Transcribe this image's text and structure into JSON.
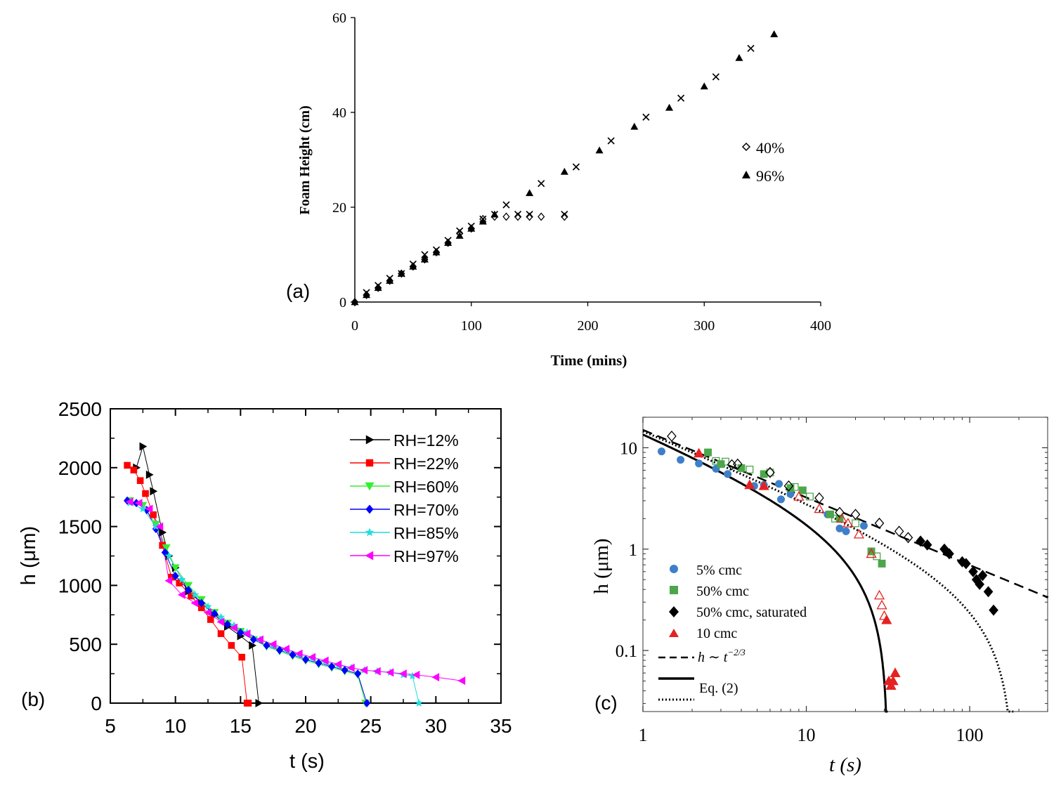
{
  "panels": {
    "a": {
      "label": "(a)"
    },
    "b": {
      "label": "(b)"
    },
    "c": {
      "label": "(c)"
    }
  },
  "chart_data": [
    {
      "id": "a",
      "type": "scatter",
      "xlabel": "Time (mins)",
      "ylabel": "Foam Height (cm)",
      "xlim": [
        0,
        400
      ],
      "ylim": [
        0,
        60
      ],
      "xticks": [
        0,
        100,
        200,
        300,
        400
      ],
      "yticks": [
        0,
        20,
        40,
        60
      ],
      "legend_position": "right",
      "series": [
        {
          "name": "40%",
          "marker": "diamond-open",
          "x": [
            0,
            10,
            20,
            30,
            40,
            50,
            60,
            70,
            80,
            90,
            100,
            110,
            120,
            130,
            140,
            150,
            160,
            180
          ],
          "y": [
            0,
            1.5,
            3,
            4.5,
            6,
            7.5,
            9,
            10.5,
            12.5,
            14.5,
            15.5,
            17.5,
            18,
            18,
            18,
            18,
            18,
            18
          ]
        },
        {
          "name": "96%",
          "marker": "triangle-filled",
          "x": [
            0,
            10,
            20,
            30,
            40,
            50,
            60,
            70,
            80,
            90,
            100,
            110,
            120,
            150,
            180,
            210,
            240,
            270,
            300,
            330,
            360
          ],
          "y": [
            0,
            1.5,
            3,
            4.5,
            6,
            7.5,
            9,
            10.5,
            12.5,
            14,
            15.5,
            17,
            18.5,
            23,
            27.5,
            32,
            37,
            41,
            45.5,
            51.5,
            56.5
          ]
        },
        {
          "marker": "x",
          "x": [
            10,
            20,
            30,
            40,
            50,
            60,
            70,
            80,
            90,
            100,
            110,
            120,
            130,
            140,
            150,
            160,
            180,
            190,
            220,
            250,
            280,
            310,
            340
          ],
          "y": [
            2,
            3.5,
            5,
            6,
            8,
            10,
            11,
            13,
            15,
            16,
            17.5,
            18.5,
            20.5,
            18.5,
            18.5,
            25,
            18.5,
            28.5,
            34,
            39,
            43,
            47.5,
            53.5
          ]
        }
      ]
    },
    {
      "id": "b",
      "type": "line",
      "xlabel": "t (s)",
      "ylabel": "h (μm)",
      "xlim": [
        5,
        35
      ],
      "ylim": [
        0,
        2500
      ],
      "xticks": [
        5,
        10,
        15,
        20,
        25,
        30,
        35
      ],
      "yticks": [
        0,
        500,
        1000,
        1500,
        2000,
        2500
      ],
      "legend_position": "top-right",
      "series": [
        {
          "name": "RH=12%",
          "color": "#000000",
          "marker": "triangle-right",
          "x": [
            7.0,
            7.5,
            8.0,
            8.3,
            9.0,
            9.5,
            10.0,
            11,
            12,
            13,
            14,
            15,
            15.9,
            16.4
          ],
          "y": [
            2000,
            2180,
            1940,
            1800,
            1450,
            1250,
            1150,
            950,
            850,
            750,
            650,
            570,
            490,
            0
          ]
        },
        {
          "name": "RH=22%",
          "color": "#ff0000",
          "marker": "square",
          "x": [
            6.3,
            6.8,
            7.3,
            7.7,
            8.3,
            9.0,
            9.7,
            10.3,
            11.2,
            12.0,
            12.7,
            13.5,
            14.3,
            15.1,
            15.5,
            15.6
          ],
          "y": [
            2020,
            1980,
            1890,
            1780,
            1600,
            1340,
            1070,
            1020,
            910,
            810,
            710,
            590,
            490,
            390,
            0,
            0
          ]
        },
        {
          "name": "RH=60%",
          "color": "#33ee33",
          "marker": "triangle-down",
          "x": [
            6.5,
            7.5,
            8.5,
            9.3,
            10.0,
            11,
            12,
            13,
            14,
            15,
            16,
            17,
            18,
            19,
            20,
            21,
            22,
            23,
            24,
            24.6
          ],
          "y": [
            1720,
            1680,
            1520,
            1320,
            1150,
            1000,
            880,
            770,
            680,
            610,
            540,
            480,
            440,
            400,
            360,
            330,
            300,
            270,
            240,
            0
          ]
        },
        {
          "name": "RH=70%",
          "color": "#0000ff",
          "marker": "diamond",
          "x": [
            6.3,
            7.0,
            7.8,
            8.5,
            9.2,
            10.0,
            11,
            12,
            13,
            14,
            15,
            16,
            17,
            18,
            19,
            20,
            21,
            22,
            23,
            24,
            24.7
          ],
          "y": [
            1720,
            1700,
            1640,
            1480,
            1280,
            1080,
            960,
            850,
            760,
            670,
            600,
            540,
            490,
            450,
            410,
            370,
            340,
            310,
            280,
            250,
            0
          ]
        },
        {
          "name": "RH=85%",
          "color": "#22dddd",
          "marker": "star",
          "x": [
            6.5,
            7.5,
            8.5,
            9.5,
            10.5,
            11.5,
            12.5,
            13.5,
            14.5,
            15.5,
            16.5,
            17.5,
            18.5,
            19.5,
            20.5,
            21.5,
            22.5,
            23.5,
            24.5,
            25.5,
            26.5,
            27.5,
            28.2,
            28.7
          ],
          "y": [
            1700,
            1650,
            1500,
            1250,
            1050,
            920,
            820,
            730,
            660,
            600,
            540,
            490,
            450,
            410,
            380,
            350,
            320,
            300,
            280,
            270,
            260,
            240,
            230,
            0
          ]
        },
        {
          "name": "RH=97%",
          "color": "#ff00ff",
          "marker": "triangle-left",
          "x": [
            6.5,
            7.2,
            8.0,
            8.8,
            9.5,
            10.5,
            11.5,
            12.5,
            13.5,
            14.5,
            15.5,
            16.5,
            17.5,
            18.5,
            19.5,
            20.5,
            21.5,
            22.5,
            23.5,
            24.5,
            25.5,
            26.5,
            27.5,
            28.5,
            30.0,
            32.0
          ],
          "y": [
            1710,
            1700,
            1650,
            1500,
            1040,
            920,
            850,
            770,
            690,
            640,
            590,
            540,
            500,
            460,
            420,
            390,
            360,
            330,
            300,
            280,
            270,
            260,
            250,
            240,
            220,
            190
          ]
        }
      ]
    },
    {
      "id": "c",
      "type": "scatter",
      "xlabel": "t (s)",
      "ylabel": "h (μm)",
      "xscale": "log",
      "yscale": "log",
      "xlim": [
        1,
        300
      ],
      "ylim": [
        0.025,
        20
      ],
      "xticks": [
        1,
        10,
        100
      ],
      "xtick_labels": [
        "1",
        "10",
        "100"
      ],
      "yticks": [
        0.1,
        1,
        10
      ],
      "ytick_labels": [
        "0.1",
        "1",
        "10"
      ],
      "legend_position": "bottom-left",
      "series": [
        {
          "name": "5% cmc",
          "color": "#3d7fc9",
          "marker": "circle",
          "x": [
            1.3,
            1.7,
            2.2,
            2.8,
            3.3,
            4.8,
            5.5,
            6.8,
            7.0,
            8.0,
            13.5,
            16.0,
            17.5,
            22.5
          ],
          "y": [
            9.2,
            7.6,
            7.0,
            6.2,
            5.5,
            4.2,
            4.3,
            4.4,
            3.1,
            3.5,
            2.2,
            1.6,
            1.5,
            1.7
          ]
        },
        {
          "name": "50% cmc",
          "color": "#4da64a",
          "marker": "square",
          "x": [
            2.5,
            2.8,
            3.0,
            3.2,
            4.0,
            4.5,
            5.5,
            6.0,
            8.0,
            8.5,
            9.5,
            10.5,
            14.0,
            15.0,
            16.0,
            20.0,
            25.0,
            27.0,
            29.0
          ],
          "y": [
            9.0,
            7.4,
            6.9,
            7.3,
            6.3,
            6.1,
            5.5,
            5.7,
            4.0,
            4.1,
            3.8,
            3.3,
            2.2,
            2.0,
            2.0,
            1.8,
            0.95,
            0.85,
            0.72
          ]
        },
        {
          "name": "50% cmc, saturated",
          "color": "#000000",
          "marker": "diamond",
          "x": [
            1.5,
            3.5,
            3.8,
            6.0,
            7.8,
            12.0,
            16.0,
            20.0,
            28.0,
            37.0,
            42.0,
            50.0,
            55.0,
            70.0,
            75.0,
            90.0,
            95.0,
            105.0,
            110.0,
            115.0,
            120.0,
            130.0,
            140.0
          ],
          "y": [
            13.0,
            6.8,
            6.9,
            5.7,
            4.2,
            3.2,
            2.3,
            2.2,
            1.8,
            1.5,
            1.3,
            1.2,
            1.1,
            1.0,
            0.9,
            0.75,
            0.72,
            0.6,
            0.5,
            0.45,
            0.55,
            0.38,
            0.25
          ]
        },
        {
          "name": "10 cmc",
          "color": "#e52222",
          "marker": "triangle",
          "x": [
            2.2,
            4.5,
            5.5,
            9.0,
            12.0,
            16.5,
            18.0,
            21.0,
            25.0,
            28.0,
            29.0,
            30.0,
            31.0,
            32.0,
            33.0,
            34.0,
            35.0
          ],
          "y": [
            8.8,
            4.3,
            4.2,
            3.3,
            2.5,
            2.0,
            1.8,
            1.4,
            0.9,
            0.35,
            0.28,
            0.22,
            0.2,
            0.05,
            0.045,
            0.05,
            0.06
          ]
        }
      ],
      "lines": [
        {
          "name": "h ~ t^{-2/3}",
          "style": "dashed",
          "formula": "h = 15 t^(-2/3)"
        },
        {
          "name": "Eq. (2)",
          "style": "solid",
          "formula": "h = 15 t^(-2/3) (1 - (t/31.5)^(2/3))"
        },
        {
          "style": "dotted",
          "formula": "h = 15 t^(-2/3) (1 - (t/185)^(2/3))"
        }
      ],
      "legend_line_labels": {
        "dashed_prefix": "h ∼ t",
        "dashed_exponent": "−2/3",
        "solid": "Eq. (2)"
      }
    }
  ]
}
